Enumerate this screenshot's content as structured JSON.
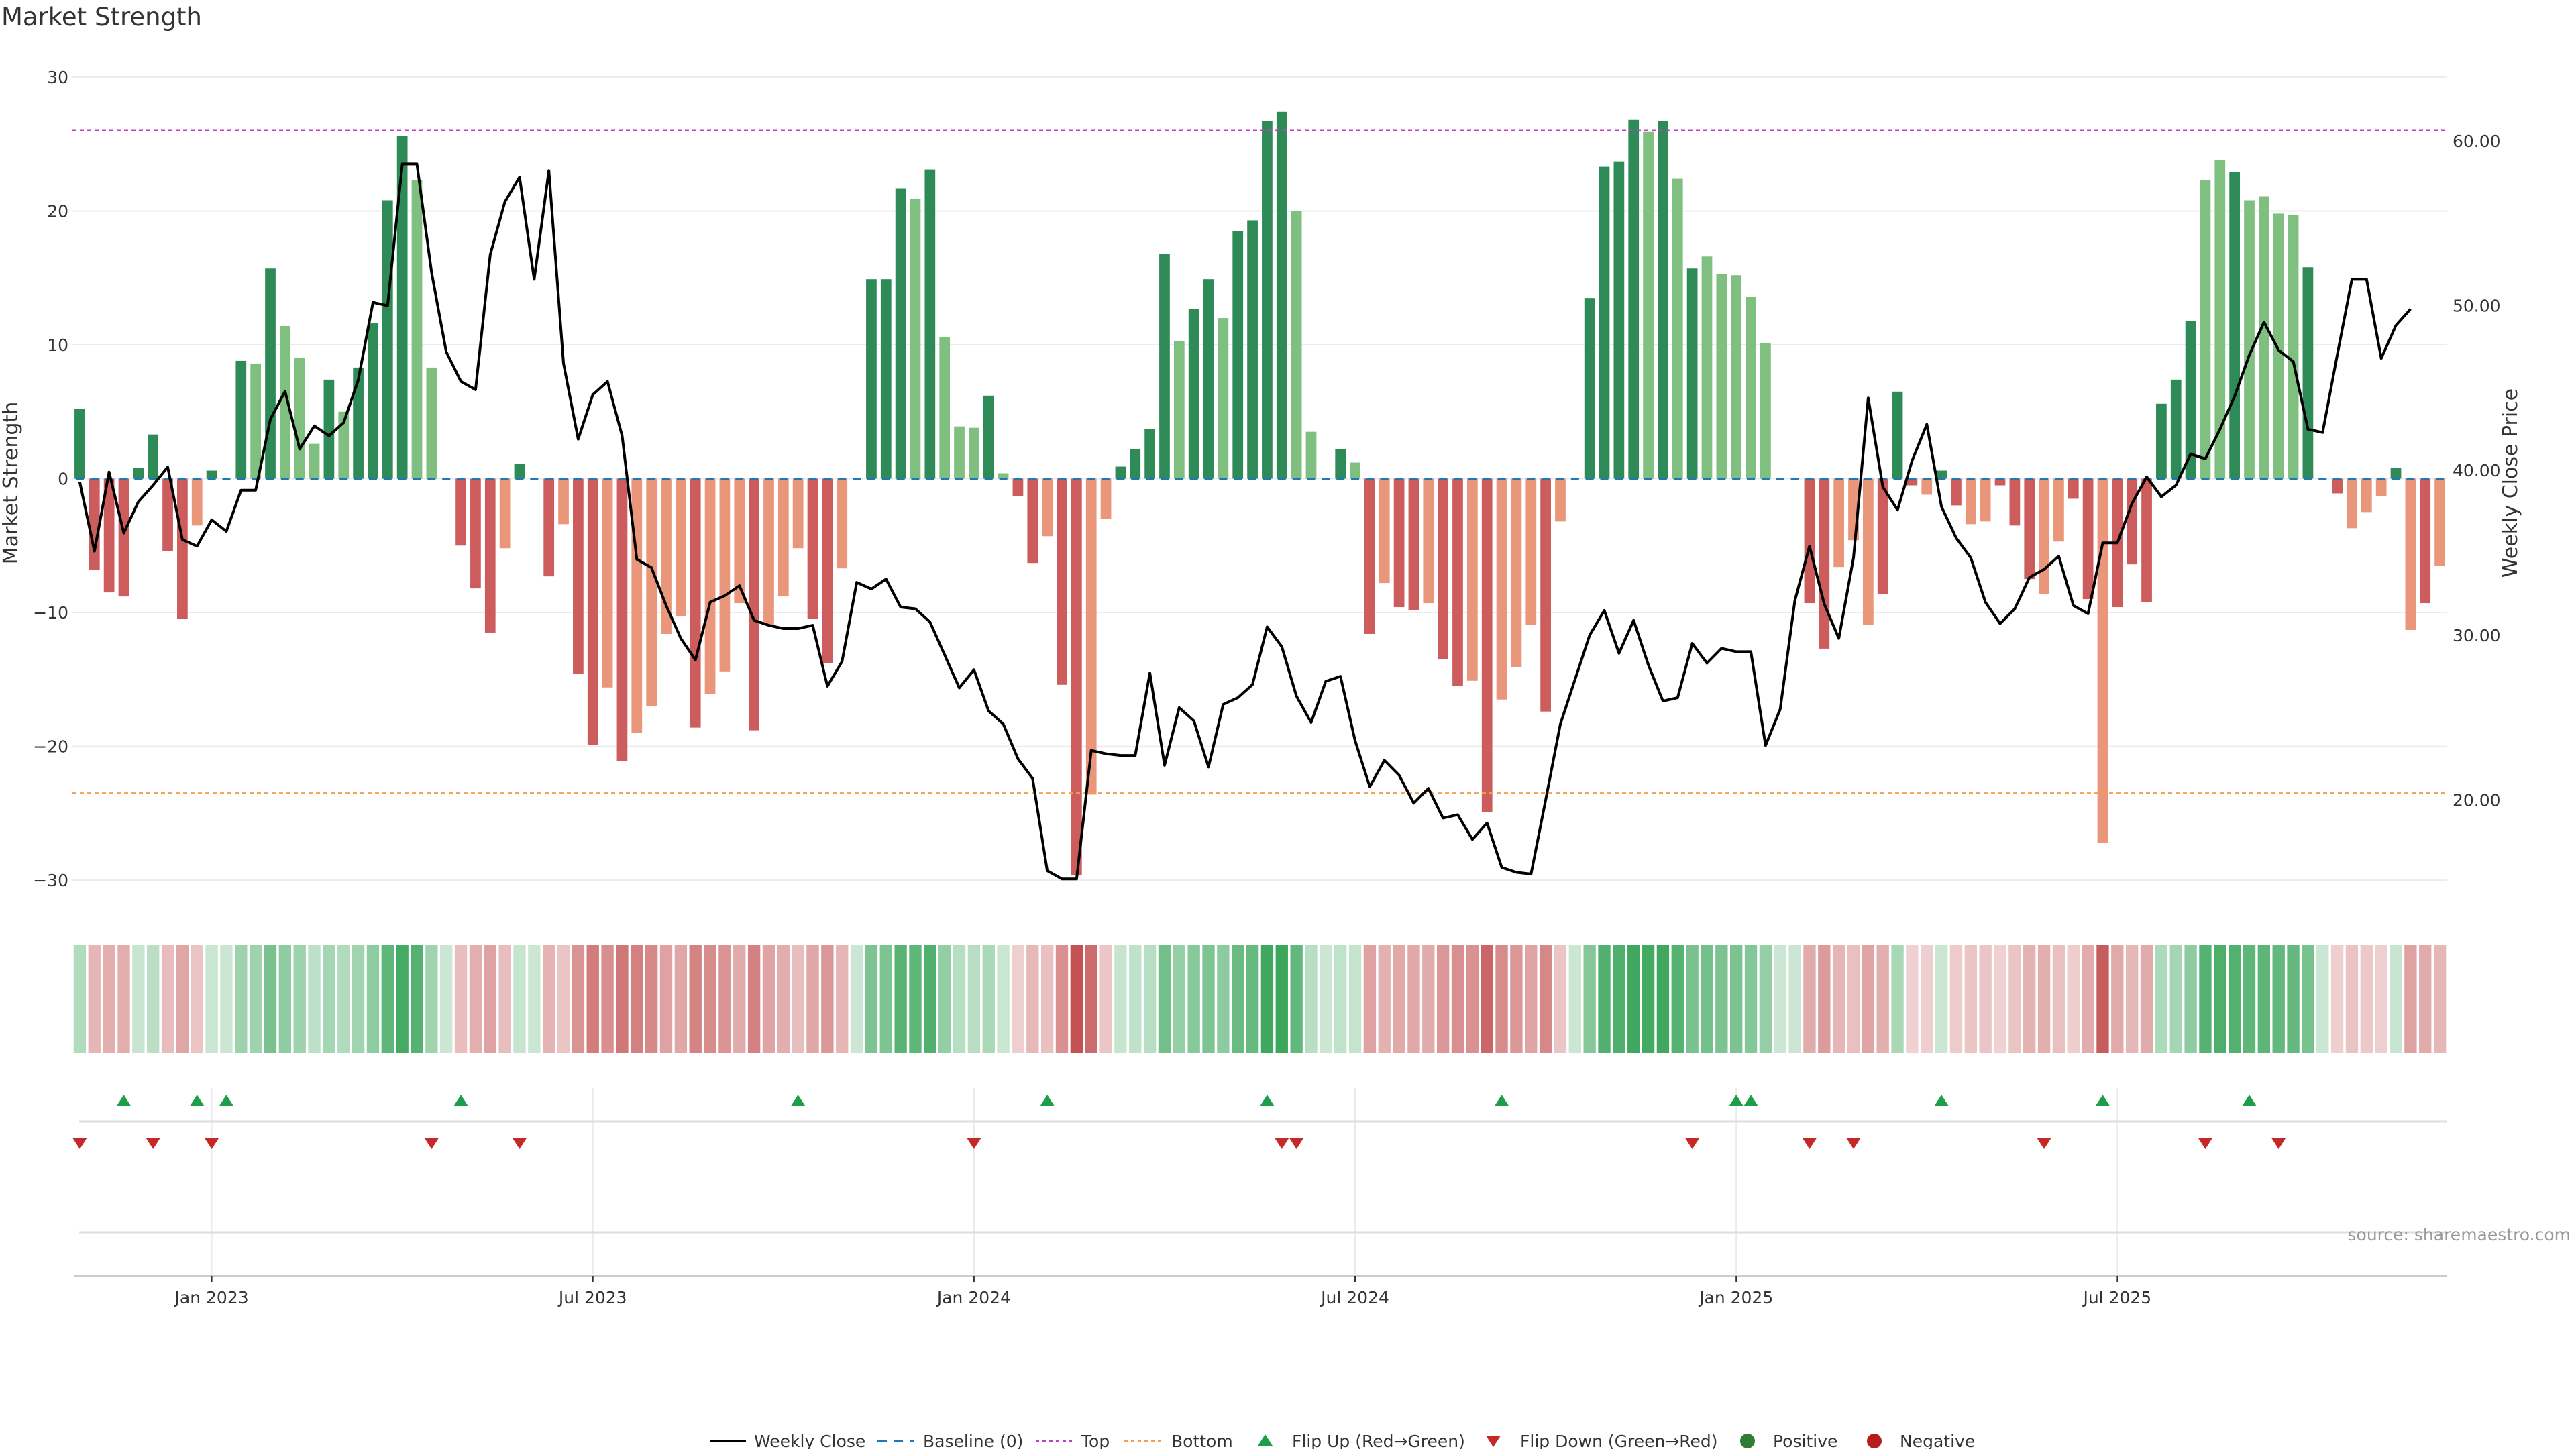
{
  "chart_data": {
    "type": "bar",
    "title": "Market Strength",
    "ylabel_left": "Market Strength",
    "ylabel_right": "Weekly Close Price",
    "source": "source: sharemaestro.com",
    "ylim_left": [
      -32,
      32
    ],
    "ylim_right": [
      13.5,
      65.5
    ],
    "yticks_left": [
      {
        "v": 30,
        "label": "30"
      },
      {
        "v": 20,
        "label": "20"
      },
      {
        "v": 10,
        "label": "10"
      },
      {
        "v": 0,
        "label": "0"
      },
      {
        "v": -10,
        "label": "−10"
      },
      {
        "v": -20,
        "label": "−20"
      },
      {
        "v": -30,
        "label": "−30"
      }
    ],
    "yticks_right": [
      {
        "v": 60,
        "label": "60.00"
      },
      {
        "v": 50,
        "label": "50.00"
      },
      {
        "v": 40,
        "label": "40.00"
      },
      {
        "v": 30,
        "label": "30.00"
      },
      {
        "v": 20,
        "label": "20.00"
      }
    ],
    "top_line": 26,
    "bottom_line": -23.5,
    "x_ticks": [
      {
        "week": 9,
        "label": "Jan 2023"
      },
      {
        "week": 35,
        "label": "Jul 2023"
      },
      {
        "week": 61,
        "label": "Jan 2024"
      },
      {
        "week": 87,
        "label": "Jul 2024"
      },
      {
        "week": 113,
        "label": "Jan 2025"
      },
      {
        "week": 139,
        "label": "Jul 2025"
      }
    ],
    "colors": {
      "pos_strong": "#2e8b57",
      "pos_weak": "#7fbf7f",
      "neg_strong": "#cd5c5c",
      "neg_weak": "#e9967a",
      "price": "#000000",
      "top": "#c040c0",
      "bottom": "#f0a050",
      "flip_up": "#1e9e4a",
      "flip_down": "#c62828",
      "baseline": "#1f77b4"
    },
    "strength": [
      5.2,
      -6.8,
      -8.5,
      -8.8,
      0.8,
      3.3,
      -5.4,
      -10.5,
      -3.5,
      0.6,
      0,
      8.8,
      8.6,
      15.7,
      11.4,
      9.0,
      2.6,
      7.4,
      5.0,
      8.3,
      11.6,
      20.8,
      25.6,
      22.3,
      8.3,
      0,
      -5.0,
      -8.2,
      -11.5,
      -5.2,
      1.1,
      0,
      -7.3,
      -3.4,
      -14.6,
      -19.9,
      -15.6,
      -21.1,
      -19.0,
      -17.0,
      -11.6,
      -10.3,
      -18.6,
      -16.1,
      -14.4,
      -9.3,
      -18.8,
      -10.9,
      -8.8,
      -5.2,
      -10.5,
      -13.8,
      -6.7,
      0,
      14.9,
      14.9,
      21.7,
      20.9,
      23.1,
      10.6,
      3.9,
      3.8,
      6.2,
      0.4,
      -1.3,
      -6.3,
      -4.3,
      -15.4,
      -29.6,
      -23.6,
      -3.0,
      0.9,
      2.2,
      3.7,
      16.8,
      10.3,
      12.7,
      14.9,
      12.0,
      18.5,
      19.3,
      26.7,
      27.4,
      20.0,
      3.5,
      0,
      2.2,
      1.2,
      -11.6,
      -7.8,
      -9.6,
      -9.8,
      -9.3,
      -13.5,
      -15.5,
      -15.1,
      -24.9,
      -16.5,
      -14.1,
      -10.9,
      -17.4,
      -3.2,
      0,
      13.5,
      23.3,
      23.7,
      26.8,
      25.9,
      26.7,
      22.4,
      15.7,
      16.6,
      15.3,
      15.2,
      13.6,
      10.1,
      0,
      0,
      -9.3,
      -12.7,
      -6.6,
      -4.6,
      -10.9,
      -8.6,
      6.5,
      -0.5,
      -1.2,
      0.6,
      -2.0,
      -3.4,
      -3.2,
      -0.5,
      -3.5,
      -7.5,
      -8.6,
      -4.7,
      -1.5,
      -9.0,
      -27.2,
      -9.6,
      -6.4,
      -9.2,
      5.6,
      7.4,
      11.8,
      22.3,
      23.8,
      22.9,
      20.8,
      21.1,
      19.8,
      19.7,
      15.8,
      0,
      -1.1,
      -3.7,
      -2.5,
      -1.3,
      0.8,
      -11.3,
      -9.3,
      -6.5
    ],
    "strong": [
      1,
      1,
      1,
      1,
      1,
      1,
      1,
      1,
      0,
      1,
      1,
      1,
      0,
      1,
      0,
      0,
      0,
      1,
      0,
      1,
      1,
      1,
      1,
      0,
      0,
      1,
      1,
      1,
      1,
      0,
      1,
      1,
      1,
      0,
      1,
      1,
      0,
      1,
      0,
      0,
      0,
      0,
      1,
      0,
      0,
      0,
      1,
      0,
      0,
      0,
      1,
      1,
      0,
      1,
      1,
      1,
      1,
      0,
      1,
      0,
      0,
      0,
      1,
      0,
      1,
      1,
      0,
      1,
      1,
      0,
      0,
      1,
      1,
      1,
      1,
      0,
      1,
      1,
      0,
      1,
      1,
      1,
      1,
      0,
      0,
      1,
      1,
      0,
      1,
      0,
      1,
      1,
      0,
      1,
      1,
      0,
      1,
      0,
      0,
      0,
      1,
      0,
      1,
      1,
      1,
      1,
      1,
      0,
      1,
      0,
      1,
      0,
      0,
      0,
      0,
      0,
      1,
      1,
      1,
      1,
      0,
      0,
      0,
      1,
      1,
      1,
      0,
      1,
      1,
      0,
      0,
      1,
      1,
      1,
      0,
      0,
      1,
      1,
      0,
      1,
      1,
      1,
      1,
      1,
      1,
      0,
      0,
      1,
      0,
      0,
      0,
      0,
      1,
      0,
      1,
      0,
      0,
      0,
      1,
      0,
      1,
      0
    ],
    "price": [
      39.3,
      35.1,
      39.9,
      36.2,
      38.1,
      39.1,
      40.2,
      35.8,
      35.4,
      37.0,
      36.3,
      38.8,
      38.8,
      43.1,
      44.8,
      41.3,
      42.7,
      42.1,
      42.9,
      45.5,
      50.2,
      50.0,
      58.6,
      58.6,
      52.0,
      47.2,
      45.4,
      44.9,
      53.1,
      56.3,
      57.8,
      51.6,
      58.2,
      46.5,
      41.9,
      44.6,
      45.4,
      42.1,
      34.6,
      34.1,
      31.8,
      29.8,
      28.5,
      32.0,
      32.4,
      33.0,
      30.9,
      30.6,
      30.4,
      30.4,
      30.6,
      26.9,
      28.4,
      33.2,
      32.8,
      33.4,
      31.7,
      31.6,
      30.8,
      28.8,
      26.8,
      27.9,
      25.4,
      24.6,
      22.5,
      21.3,
      15.7,
      15.2,
      15.2,
      23.0,
      22.8,
      22.7,
      22.7,
      27.7,
      22.1,
      25.6,
      24.8,
      22.0,
      25.8,
      26.2,
      27.0,
      30.5,
      29.3,
      26.3,
      24.7,
      27.2,
      27.5,
      23.6,
      20.8,
      22.4,
      21.5,
      19.8,
      20.7,
      18.9,
      19.1,
      17.6,
      18.6,
      15.9,
      15.6,
      15.5,
      20.0,
      24.6,
      27.3,
      30.0,
      31.5,
      28.9,
      30.9,
      28.2,
      26.0,
      26.2,
      29.5,
      28.3,
      29.2,
      29.0,
      29.0,
      23.3,
      25.5,
      32.1,
      35.4,
      31.9,
      29.8,
      34.7,
      44.4,
      39.0,
      37.6,
      40.6,
      42.8,
      37.8,
      35.9,
      34.7,
      32.0,
      30.7,
      31.6,
      33.5,
      34.0,
      34.8,
      31.8,
      31.3,
      35.6,
      35.6,
      38.0,
      39.6,
      38.4,
      39.1,
      41.0,
      40.7,
      42.5,
      44.5,
      47.0,
      49.0,
      47.3,
      46.6,
      42.5,
      42.3,
      47.0,
      51.6,
      51.6,
      46.8,
      48.8,
      49.8
    ],
    "heat_color_of_week": "derived from strength sign and magnitude",
    "flips_up": [
      3,
      8,
      10,
      26,
      49,
      66,
      81,
      97,
      113,
      114,
      127,
      138,
      148
    ],
    "flips_down": [
      0,
      5,
      9,
      24,
      30,
      61,
      82,
      83,
      110,
      118,
      121,
      134,
      145,
      150
    ],
    "legend": [
      "Weekly Close",
      "Baseline (0)",
      "Top",
      "Bottom",
      "Flip Up (Red→Green)",
      "Flip Down (Green→Red)",
      "Positive",
      "Negative"
    ]
  }
}
